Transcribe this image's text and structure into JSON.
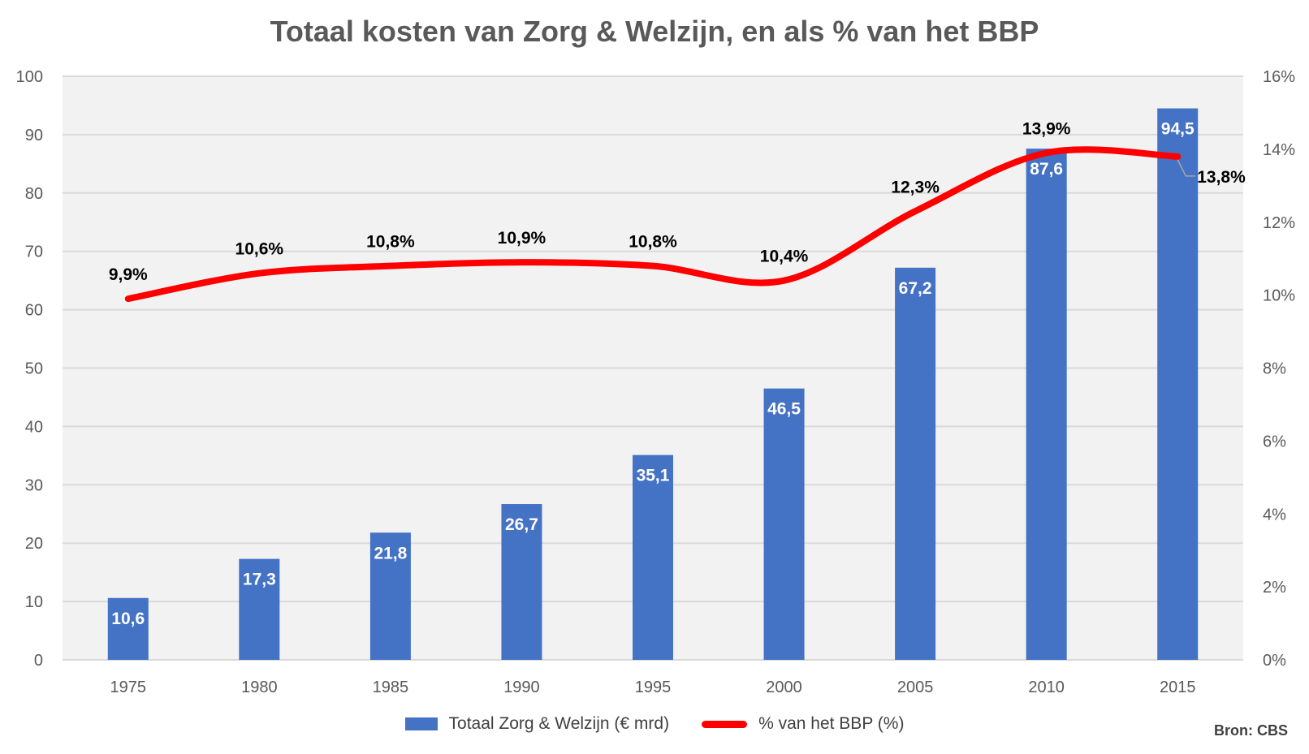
{
  "chart_data": {
    "type": "bar+line",
    "title": "Totaal kosten van Zorg & Welzijn, en als % van het BBP",
    "categories": [
      "1975",
      "1980",
      "1985",
      "1990",
      "1995",
      "2000",
      "2005",
      "2010",
      "2015"
    ],
    "series": [
      {
        "name": "Totaal Zorg & Welzijn (€ mrd)",
        "type": "bar",
        "axis": "left",
        "color": "#4472c4",
        "values": [
          10.6,
          17.3,
          21.8,
          26.7,
          35.1,
          46.5,
          67.2,
          87.6,
          94.5
        ],
        "labels": [
          "10,6",
          "17,3",
          "21,8",
          "26,7",
          "35,1",
          "46,5",
          "67,2",
          "87,6",
          "94,5"
        ]
      },
      {
        "name": "% van het BBP (%)",
        "type": "line",
        "axis": "right",
        "color": "#ff0000",
        "values": [
          9.9,
          10.6,
          10.8,
          10.9,
          10.8,
          10.4,
          12.3,
          13.9,
          13.8
        ],
        "labels": [
          "9,9%",
          "10,6%",
          "10,8%",
          "10,9%",
          "10,8%",
          "10,4%",
          "12,3%",
          "13,9%",
          "13,8%"
        ]
      }
    ],
    "left_axis": {
      "ylim": [
        0,
        100
      ],
      "ticks": [
        "0",
        "10",
        "20",
        "30",
        "40",
        "50",
        "60",
        "70",
        "80",
        "90",
        "100"
      ]
    },
    "right_axis": {
      "ylim": [
        0,
        16
      ],
      "ticks": [
        "0%",
        "2%",
        "4%",
        "6%",
        "8%",
        "10%",
        "12%",
        "14%",
        "16%"
      ]
    },
    "grid": true,
    "legend_position": "bottom",
    "source": "Bron: CBS",
    "plot_background": "#f2f2f2"
  }
}
